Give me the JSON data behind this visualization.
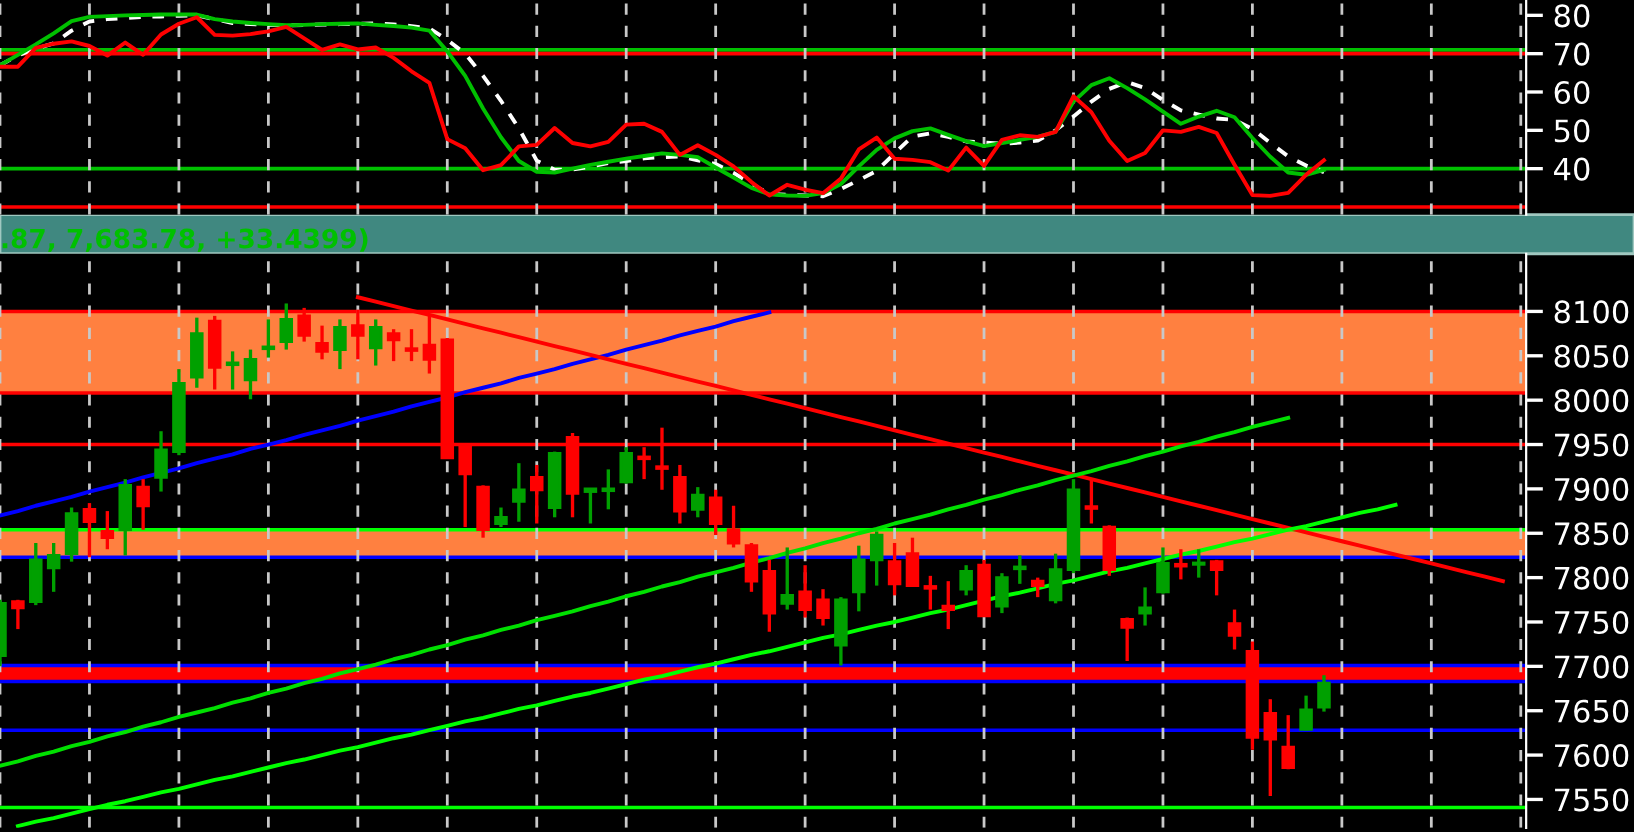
{
  "chart_data": [
    {
      "type": "line",
      "categories": [
        null,
        null,
        null,
        null,
        null,
        null,
        null,
        null,
        null,
        null,
        null,
        null,
        null,
        null,
        null,
        null,
        null,
        null,
        null,
        null,
        null,
        null,
        null,
        null,
        null,
        null,
        null,
        null,
        null,
        null,
        null,
        null,
        null,
        null,
        null,
        null,
        null,
        null,
        null,
        null,
        null,
        null,
        null,
        null,
        null,
        null,
        null,
        null,
        null,
        null,
        null,
        null,
        null,
        null,
        null,
        null,
        null,
        null,
        null,
        null,
        null,
        null,
        null,
        null,
        null,
        null,
        null,
        null,
        null,
        null,
        null,
        null,
        null,
        null,
        null,
        null,
        null,
        null,
        null,
        null,
        null,
        null,
        null,
        null,
        null,
        null
      ],
      "ylim": [
        28,
        84
      ],
      "yticks": [
        40,
        50,
        60,
        70,
        80
      ],
      "grid": "x",
      "tick_labels": "y",
      "ref_lines": [
        {
          "axis": "y",
          "value": 71,
          "color": "#00c000"
        },
        {
          "axis": "y",
          "value": 70,
          "color": "#ff0000"
        },
        {
          "axis": "y",
          "value": 40,
          "color": "#00c000"
        },
        {
          "axis": "y",
          "value": 30,
          "color": "#ff0000"
        }
      ],
      "series": [
        {
          "color": "#ffffff",
          "line_style": "dashed",
          "values": [
            67,
            69.5,
            71.3,
            72.7,
            76,
            78.4,
            79,
            79.3,
            79.6,
            79.7,
            79.9,
            80,
            79,
            78,
            77.7,
            77.5,
            77.4,
            77.5,
            77.6,
            77.7,
            77.8,
            77.9,
            77.6,
            77.2,
            76.6,
            73.6,
            70,
            64.2,
            57.7,
            50.5,
            42.1,
            39.7,
            39.8,
            40.5,
            41.5,
            42,
            42.7,
            43,
            43.2,
            42.2,
            41.2,
            38.9,
            36,
            33.4,
            33.2,
            33,
            32.8,
            34.7,
            37,
            39.4,
            44,
            48.4,
            49.2,
            48.3,
            47.1,
            46.8,
            46.5,
            46.8,
            47.3,
            50,
            53.6,
            57.5,
            60.8,
            62.6,
            61,
            57.9,
            55.2,
            54.1,
            53.1,
            52.7,
            50.4,
            46.7,
            43.2,
            40.8,
            39.1,
            null,
            null,
            null,
            null,
            null,
            null,
            null,
            null,
            null,
            null,
            null
          ]
        },
        {
          "color": "#00c000",
          "line_style": "solid",
          "values": [
            67,
            69.7,
            72.4,
            75.3,
            78.5,
            79.6,
            79.8,
            80,
            80.1,
            80.2,
            80.2,
            80.2,
            79,
            78.4,
            78,
            77.7,
            77.4,
            77.5,
            77.7,
            77.8,
            77.9,
            77.5,
            77.2,
            76.8,
            76,
            70.6,
            64.2,
            55.7,
            48.2,
            42,
            39.2,
            39,
            40,
            41,
            41.8,
            42.6,
            43.3,
            44,
            43.6,
            43,
            40.3,
            37.7,
            35,
            33.3,
            33,
            32.9,
            33.6,
            36,
            40.6,
            44.9,
            47.9,
            49.8,
            50.5,
            48.8,
            47.2,
            45.9,
            46.7,
            47.5,
            48.3,
            49.6,
            57.5,
            61.8,
            63.6,
            61,
            58.1,
            54.9,
            51.7,
            53.6,
            55.1,
            53.4,
            48,
            43.1,
            39,
            38.4,
            39.7,
            null,
            null,
            null,
            null,
            null,
            null,
            null,
            null,
            null,
            null,
            null
          ]
        },
        {
          "color": "#ff0000",
          "line_style": "solid",
          "values": [
            66.6,
            66.6,
            71.5,
            72.6,
            73.2,
            72,
            69.5,
            72.9,
            69.7,
            75,
            77.8,
            79.5,
            74.9,
            74.7,
            75.1,
            75.8,
            77,
            74,
            71,
            72.4,
            71.1,
            71.6,
            68.9,
            65.4,
            62.4,
            47.7,
            45.3,
            39.6,
            40.9,
            45.8,
            46.2,
            50.6,
            46.7,
            45.8,
            47,
            51.5,
            51.7,
            49.6,
            43.6,
            46.1,
            43.6,
            40.6,
            36.5,
            33,
            35.8,
            34.5,
            33.6,
            37.4,
            45,
            48.1,
            42.6,
            42.3,
            41.7,
            39.5,
            45.5,
            40.7,
            47.5,
            48.7,
            48.3,
            49.6,
            58.9,
            54.7,
            47.3,
            42,
            44.1,
            50,
            49.6,
            50.9,
            49.3,
            41,
            33.1,
            32.9,
            33.7,
            38.4,
            42.2,
            null,
            null,
            null,
            null,
            null,
            null,
            null,
            null,
            null,
            null,
            null
          ]
        }
      ]
    },
    {
      "type": "candlestick",
      "title": ".87, 7,683.78, +33.4399)",
      "categories": [
        null,
        null,
        null,
        null,
        null,
        null,
        null,
        null,
        null,
        null,
        null,
        null,
        null,
        null,
        null,
        null,
        null,
        null,
        null,
        null,
        null,
        null,
        null,
        null,
        null,
        null,
        null,
        null,
        null,
        null,
        null,
        null,
        null,
        null,
        null,
        null,
        null,
        null,
        null,
        null,
        null,
        null,
        null,
        null,
        null,
        null,
        null,
        null,
        null,
        null,
        null,
        null,
        null,
        null,
        null,
        null,
        null,
        null,
        null,
        null,
        null,
        null,
        null,
        null,
        null,
        null,
        null,
        null,
        null,
        null,
        null,
        null,
        null,
        null,
        null,
        null,
        null,
        null,
        null,
        null,
        null,
        null,
        null,
        null,
        null,
        null
      ],
      "ylim": [
        7518,
        8165
      ],
      "yticks": [
        7550,
        7600,
        7650,
        7700,
        7750,
        7800,
        7850,
        7900,
        7950,
        8000,
        8050,
        8100
      ],
      "grid": "x",
      "tick_labels": "y",
      "colors": [
        "#00a000",
        "#ff0000",
        "#00a000",
        "#00a000",
        "#00a000",
        "#ff0000",
        "#ff0000",
        "#00a000",
        "#ff0000",
        "#00a000",
        "#00a000",
        "#00a000",
        "#ff0000",
        "#00a000",
        "#00a000",
        "#00a000",
        "#00a000",
        "#ff0000",
        "#ff0000",
        "#00a000",
        "#ff0000",
        "#00a000",
        "#ff0000",
        "#ff0000",
        "#ff0000",
        "#ff0000",
        "#ff0000",
        "#ff0000",
        "#00a000",
        "#00a000",
        "#ff0000",
        "#00a000",
        "#ff0000",
        "#00a000",
        "#00a000",
        "#00a000",
        "#ff0000",
        "#ff0000",
        "#ff0000",
        "#00a000",
        "#ff0000",
        "#ff0000",
        "#ff0000",
        "#ff0000",
        "#00a000",
        "#ff0000",
        "#ff0000",
        "#00a000",
        "#00a000",
        "#00a000",
        "#ff0000",
        "#ff0000",
        "#ff0000",
        "#ff0000",
        "#00a000",
        "#ff0000",
        "#00a000",
        "#00a000",
        "#ff0000",
        "#00a000",
        "#00a000",
        "#ff0000",
        "#ff0000",
        "#ff0000",
        "#00a000",
        "#00a000",
        "#ff0000",
        "#00a000",
        "#ff0000",
        "#ff0000",
        "#ff0000",
        "#ff0000",
        "#ff0000",
        "#00a000",
        "#00a000",
        null,
        null,
        null,
        null,
        null,
        null,
        null,
        null,
        null,
        null,
        null
      ],
      "bands": [
        {
          "axis": "y",
          "from": 8008,
          "to": 8100,
          "color": "#ff8040"
        },
        {
          "axis": "y",
          "from": 7823,
          "to": 7854,
          "color": "#ff8040"
        },
        {
          "axis": "y",
          "from": 7683,
          "to": 7701,
          "color": "#ff0000"
        }
      ],
      "ref_lines": [
        {
          "axis": "y",
          "value": 8100,
          "color": "#ff0000"
        },
        {
          "axis": "y",
          "value": 8008,
          "color": "#ff0000"
        },
        {
          "axis": "y",
          "value": 7950,
          "color": "#ff0000"
        },
        {
          "axis": "y",
          "value": 7854,
          "color": "#00ff00"
        },
        {
          "axis": "y",
          "value": 7823,
          "color": "#0000ff"
        },
        {
          "axis": "y",
          "value": 7701,
          "color": "#0000ff"
        },
        {
          "axis": "y",
          "value": 7683,
          "color": "#0000ff"
        },
        {
          "axis": "y",
          "value": 7628,
          "color": "#0000ff"
        },
        {
          "axis": "y",
          "value": 7541,
          "color": "#00ff00"
        }
      ],
      "ohlc": [
        [
          7712,
          7775,
          7700,
          7771
        ],
        [
          7773,
          7775,
          7742,
          7766
        ],
        [
          7773,
          7839,
          7769,
          7820
        ],
        [
          7811,
          7839,
          7784,
          7825
        ],
        [
          7827,
          7879,
          7818,
          7872
        ],
        [
          7877,
          7884,
          7823,
          7863
        ],
        [
          7852,
          7875,
          7832,
          7845
        ],
        [
          7854,
          7911,
          7825,
          7904
        ],
        [
          7902,
          7911,
          7854,
          7881
        ],
        [
          7913,
          7965,
          7897,
          7944
        ],
        [
          7942,
          8035,
          7938,
          8019
        ],
        [
          8026,
          8093,
          8014,
          8075
        ],
        [
          8089,
          8095,
          8012,
          8037
        ],
        [
          8040,
          8055,
          8012,
          8042
        ],
        [
          8023,
          8057,
          8001,
          8046
        ],
        [
          8058,
          8091,
          8048,
          8060
        ],
        [
          8066,
          8109,
          8057,
          8091
        ],
        [
          8095,
          8104,
          8066,
          8073
        ],
        [
          8064,
          8084,
          8046,
          8055
        ],
        [
          8057,
          8091,
          8035,
          8082
        ],
        [
          8084,
          8102,
          8046,
          8073
        ],
        [
          8059,
          8091,
          8039,
          8082
        ],
        [
          8075,
          8080,
          8044,
          8068
        ],
        [
          8058,
          8080,
          8044,
          8056
        ],
        [
          8062,
          8095,
          8030,
          8046
        ],
        [
          8068,
          8070,
          7935,
          7935
        ],
        [
          7947,
          7950,
          7857,
          7917
        ],
        [
          7902,
          7904,
          7845,
          7854
        ],
        [
          7861,
          7879,
          7857,
          7868
        ],
        [
          7886,
          7929,
          7863,
          7899
        ],
        [
          7913,
          7927,
          7861,
          7899
        ],
        [
          7879,
          7942,
          7868,
          7940
        ],
        [
          7958,
          7963,
          7868,
          7895
        ],
        [
          7897,
          7901,
          7861,
          7900
        ],
        [
          7898,
          7922,
          7877,
          7900
        ],
        [
          7908,
          7947,
          7906,
          7940
        ],
        [
          7936,
          7947,
          7911,
          7934
        ],
        [
          7925,
          7969,
          7899,
          7923
        ],
        [
          7913,
          7927,
          7861,
          7875
        ],
        [
          7877,
          7902,
          7868,
          7893
        ],
        [
          7890,
          7899,
          7848,
          7861
        ],
        [
          7854,
          7881,
          7834,
          7839
        ],
        [
          7836,
          7839,
          7784,
          7796
        ],
        [
          7807,
          7820,
          7739,
          7760
        ],
        [
          7771,
          7834,
          7764,
          7780
        ],
        [
          7784,
          7814,
          7755,
          7764
        ],
        [
          7775,
          7787,
          7746,
          7755
        ],
        [
          7724,
          7778,
          7701,
          7775
        ],
        [
          7784,
          7836,
          7762,
          7820
        ],
        [
          7820,
          7852,
          7791,
          7848
        ],
        [
          7818,
          7839,
          7780,
          7793
        ],
        [
          7827,
          7845,
          7791,
          7791
        ],
        [
          7790,
          7802,
          7764,
          7788
        ],
        [
          7768,
          7796,
          7742,
          7764
        ],
        [
          7787,
          7814,
          7780,
          7807
        ],
        [
          7814,
          7820,
          7757,
          7757
        ],
        [
          7768,
          7805,
          7760,
          7800
        ],
        [
          7810,
          7825,
          7793,
          7812
        ],
        [
          7796,
          7800,
          7778,
          7791
        ],
        [
          7775,
          7827,
          7771,
          7809
        ],
        [
          7809,
          7911,
          7805,
          7899
        ],
        [
          7880,
          7911,
          7861,
          7878
        ],
        [
          7857,
          7859,
          7802,
          7809
        ],
        [
          7753,
          7755,
          7706,
          7744
        ],
        [
          7760,
          7789,
          7746,
          7766
        ],
        [
          7784,
          7834,
          7782,
          7816
        ],
        [
          7815,
          7832,
          7798,
          7813
        ],
        [
          7815,
          7832,
          7800,
          7816
        ],
        [
          7818,
          7820,
          7780,
          7809
        ],
        [
          7748,
          7764,
          7719,
          7735
        ],
        [
          7717,
          7728,
          7606,
          7620
        ],
        [
          7647,
          7663,
          7554,
          7618
        ],
        [
          7609,
          7645,
          7584,
          7586
        ],
        [
          7629,
          7667,
          7628,
          7651
        ],
        [
          7654,
          7690,
          7649,
          7681
        ],
        null,
        null,
        null,
        null,
        null,
        null,
        null,
        null,
        null,
        null,
        null
      ],
      "series": [
        {
          "type": "line",
          "color": "#0000ff",
          "values": [
            7870,
            7875,
            7881,
            7886,
            7891,
            7897,
            7902,
            7907,
            7913,
            7918,
            7923,
            7929,
            7934,
            7939,
            7945,
            7950,
            7955,
            7961,
            7966,
            7971,
            7977,
            7982,
            7987,
            7993,
            7998,
            8003,
            8009,
            8014,
            8019,
            8025,
            8030,
            8035,
            8041,
            8046,
            8051,
            8057,
            8062,
            8067,
            8073,
            8078,
            8083,
            8089,
            8094,
            8099,
            null,
            null,
            null,
            null,
            null,
            null,
            null,
            null,
            null,
            null,
            null,
            null,
            null,
            null,
            null,
            null,
            null,
            null,
            null,
            null,
            null,
            null,
            null,
            null,
            null,
            null,
            null,
            null,
            null,
            null,
            null,
            null,
            null,
            null,
            null,
            null,
            null,
            null,
            null,
            null,
            null,
            null
          ]
        },
        {
          "type": "line",
          "color": "#ff0000",
          "values": [
            null,
            null,
            null,
            null,
            null,
            null,
            null,
            null,
            null,
            null,
            null,
            null,
            null,
            null,
            null,
            null,
            null,
            null,
            null,
            null,
            8116,
            8111,
            8106,
            8101,
            8096,
            8091,
            8086,
            8081,
            8076,
            8071,
            8066,
            8061,
            8056,
            8051,
            8046,
            8041,
            8036,
            8031,
            8026,
            8021,
            8016,
            8011,
            8006,
            8001,
            7996,
            7991,
            7986,
            7981,
            7976,
            7971,
            7966,
            7961,
            7956,
            7951,
            7946,
            7941,
            7936,
            7931,
            7926,
            7921,
            7916,
            7911,
            7906,
            7901,
            7896,
            7891,
            7886,
            7881,
            7876,
            7871,
            7866,
            7861,
            7856,
            7851,
            7846,
            7841,
            7836,
            7831,
            7826,
            7821,
            7816,
            7811,
            7806,
            7801,
            7796,
            null
          ]
        },
        {
          "type": "line",
          "color": "#00e000",
          "values": [
            7588,
            7593,
            7599,
            7604,
            7610,
            7615,
            7621,
            7626,
            7632,
            7637,
            7643,
            7648,
            7653,
            7659,
            7664,
            7670,
            7675,
            7681,
            7686,
            7692,
            7697,
            7702,
            7708,
            7713,
            7719,
            7724,
            7730,
            7735,
            7741,
            7746,
            7752,
            7757,
            7762,
            7768,
            7773,
            7779,
            7784,
            7790,
            7795,
            7801,
            7806,
            7811,
            7817,
            7822,
            7828,
            7833,
            7839,
            7844,
            7850,
            7855,
            7861,
            7866,
            7871,
            7877,
            7882,
            7888,
            7893,
            7899,
            7904,
            7910,
            7915,
            7920,
            7926,
            7931,
            7937,
            7942,
            7948,
            7953,
            7959,
            7964,
            7970,
            7975,
            7980,
            null,
            null,
            null,
            null,
            null,
            null,
            null,
            null,
            null,
            null,
            null,
            null,
            null
          ]
        },
        {
          "type": "line",
          "color": "#00ff00",
          "values": [
            null,
            7520,
            7525,
            7529,
            7534,
            7539,
            7544,
            7548,
            7553,
            7558,
            7562,
            7567,
            7572,
            7576,
            7581,
            7586,
            7591,
            7595,
            7600,
            7605,
            7609,
            7614,
            7619,
            7623,
            7628,
            7633,
            7638,
            7642,
            7647,
            7652,
            7656,
            7661,
            7666,
            7670,
            7675,
            7680,
            7685,
            7689,
            7694,
            7699,
            7703,
            7708,
            7713,
            7717,
            7722,
            7727,
            7732,
            7736,
            7741,
            7746,
            7750,
            7755,
            7760,
            7764,
            7769,
            7774,
            7779,
            7783,
            7788,
            7793,
            7797,
            7802,
            7807,
            7811,
            7816,
            7821,
            7826,
            7830,
            7835,
            7840,
            7844,
            7849,
            7854,
            7858,
            7863,
            7868,
            7873,
            7877,
            7882,
            null,
            null,
            null,
            null,
            null,
            null,
            null
          ]
        }
      ]
    }
  ]
}
